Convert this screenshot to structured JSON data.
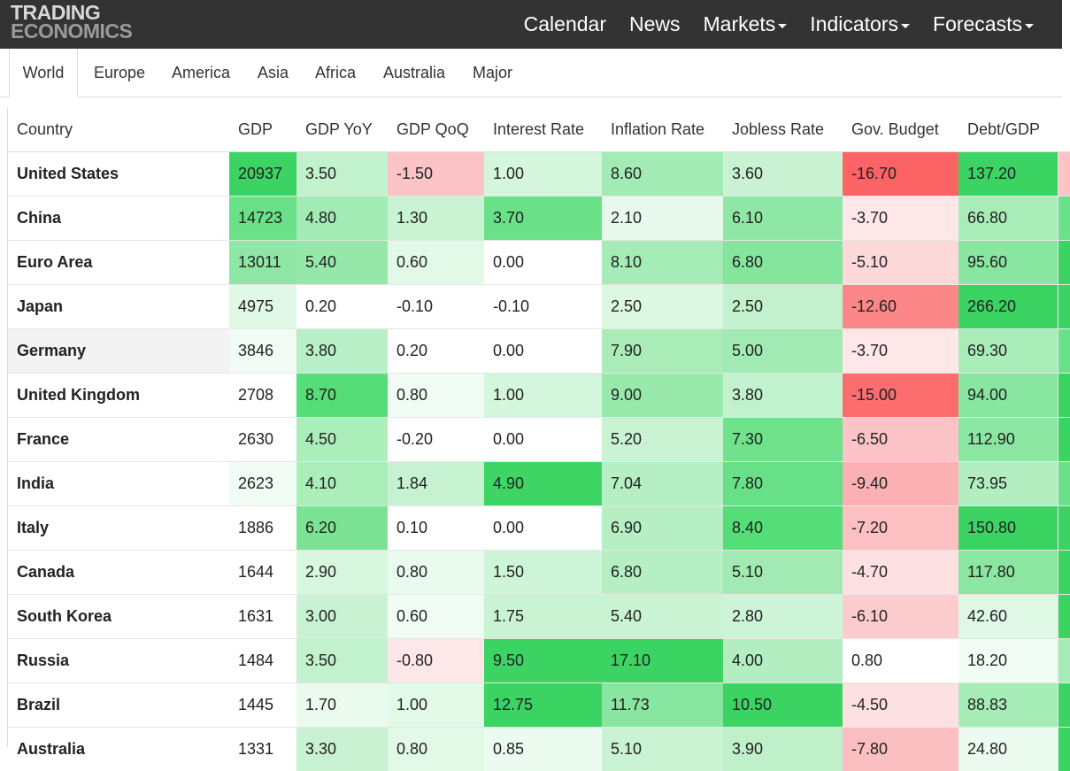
{
  "header": {
    "logo_line1": "TRADING",
    "logo_line2": "ECONOMICS",
    "nav": [
      {
        "label": "Calendar",
        "dropdown": false
      },
      {
        "label": "News",
        "dropdown": false
      },
      {
        "label": "Markets",
        "dropdown": true
      },
      {
        "label": "Indicators",
        "dropdown": true
      },
      {
        "label": "Forecasts",
        "dropdown": true
      }
    ]
  },
  "tabs": [
    {
      "label": "World",
      "active": true
    },
    {
      "label": "Europe",
      "active": false
    },
    {
      "label": "America",
      "active": false
    },
    {
      "label": "Asia",
      "active": false
    },
    {
      "label": "Africa",
      "active": false
    },
    {
      "label": "Australia",
      "active": false
    },
    {
      "label": "Major",
      "active": false
    }
  ],
  "table": {
    "columns": [
      "Country",
      "GDP",
      "GDP YoY",
      "GDP QoQ",
      "Interest Rate",
      "Inflation Rate",
      "Jobless Rate",
      "Gov. Budget",
      "Debt/GDP"
    ],
    "rows": [
      {
        "country": "United States",
        "values": [
          "20937",
          "3.50",
          "-1.50",
          "1.00",
          "8.60",
          "3.60",
          "-16.70",
          "137.20"
        ]
      },
      {
        "country": "China",
        "values": [
          "14723",
          "4.80",
          "1.30",
          "3.70",
          "2.10",
          "6.10",
          "-3.70",
          "66.80"
        ]
      },
      {
        "country": "Euro Area",
        "values": [
          "13011",
          "5.40",
          "0.60",
          "0.00",
          "8.10",
          "6.80",
          "-5.10",
          "95.60"
        ]
      },
      {
        "country": "Japan",
        "values": [
          "4975",
          "0.20",
          "-0.10",
          "-0.10",
          "2.50",
          "2.50",
          "-12.60",
          "266.20"
        ]
      },
      {
        "country": "Germany",
        "values": [
          "3846",
          "3.80",
          "0.20",
          "0.00",
          "7.90",
          "5.00",
          "-3.70",
          "69.30"
        ]
      },
      {
        "country": "United Kingdom",
        "values": [
          "2708",
          "8.70",
          "0.80",
          "1.00",
          "9.00",
          "3.80",
          "-15.00",
          "94.00"
        ]
      },
      {
        "country": "France",
        "values": [
          "2630",
          "4.50",
          "-0.20",
          "0.00",
          "5.20",
          "7.30",
          "-6.50",
          "112.90"
        ]
      },
      {
        "country": "India",
        "values": [
          "2623",
          "4.10",
          "1.84",
          "4.90",
          "7.04",
          "7.80",
          "-9.40",
          "73.95"
        ]
      },
      {
        "country": "Italy",
        "values": [
          "1886",
          "6.20",
          "0.10",
          "0.00",
          "6.90",
          "8.40",
          "-7.20",
          "150.80"
        ]
      },
      {
        "country": "Canada",
        "values": [
          "1644",
          "2.90",
          "0.80",
          "1.50",
          "6.80",
          "5.10",
          "-4.70",
          "117.80"
        ]
      },
      {
        "country": "South Korea",
        "values": [
          "1631",
          "3.00",
          "0.60",
          "1.75",
          "5.40",
          "2.80",
          "-6.10",
          "42.60"
        ]
      },
      {
        "country": "Russia",
        "values": [
          "1484",
          "3.50",
          "-0.80",
          "9.50",
          "17.10",
          "4.00",
          "0.80",
          "18.20"
        ]
      },
      {
        "country": "Brazil",
        "values": [
          "1445",
          "1.70",
          "1.00",
          "12.75",
          "11.73",
          "10.50",
          "-4.50",
          "88.83"
        ]
      },
      {
        "country": "Australia",
        "values": [
          "1331",
          "3.30",
          "0.80",
          "0.85",
          "5.10",
          "3.90",
          "-7.80",
          "24.80"
        ]
      }
    ],
    "cell_colors": [
      [
        "#3bd362",
        "#c2f1cd",
        "#fcc4c6",
        "#d4f6dc",
        "#a2ebb4",
        "#c8f2d2",
        "#fb6365",
        "#3bd362"
      ],
      [
        "#6ae188",
        "#a2ebb4",
        "#c9f3d3",
        "#6ae188",
        "#e6f9eb",
        "#8fe7a5",
        "#fde7e8",
        "#a8ecb8"
      ],
      [
        "#8fe7a5",
        "#95e8aa",
        "#e1f9e6",
        "#ffffff",
        "#a6ecb6",
        "#85e59d",
        "#fdd9da",
        "#89e6a0"
      ],
      [
        "#e0f9e6",
        "#ffffff",
        "#ffffff",
        "#ffffff",
        "#dcf7e2",
        "#c4f1cd",
        "#fc8789",
        "#3bd362"
      ],
      [
        "#f1fcf4",
        "#b9efc6",
        "#ffffff",
        "#ffffff",
        "#a9ecb8",
        "#a2eab3",
        "#fde7e8",
        "#a8ecb8"
      ],
      [
        "#ffffff",
        "#55dd77",
        "#f1fcf4",
        "#d4f6dc",
        "#99e9ad",
        "#c2f1cd",
        "#fb6d6f",
        "#89e6a0"
      ],
      [
        "#ffffff",
        "#aceeba",
        "#ffffff",
        "#ffffff",
        "#c9f3d3",
        "#70e28c",
        "#fcc4c6",
        "#8ae6a1"
      ],
      [
        "#f1fcf4",
        "#aceeba",
        "#c7f2d1",
        "#3ed564",
        "#b5efc3",
        "#68e087",
        "#fbb1b3",
        "#b3eec0"
      ],
      [
        "#ffffff",
        "#7ce395",
        "#ffffff",
        "#ffffff",
        "#b6efc4",
        "#55dd77",
        "#fcc0c2",
        "#3bd362"
      ],
      [
        "#ffffff",
        "#d8f7df",
        "#e9faee",
        "#cff5d8",
        "#b5efc3",
        "#a2eab3",
        "#fde1e2",
        "#8ae6a1"
      ],
      [
        "#ffffff",
        "#c8f2d2",
        "#f1fcf4",
        "#c9f3d3",
        "#c9f3d3",
        "#cef4d7",
        "#fccbcd",
        "#dff8e5"
      ],
      [
        "#ffffff",
        "#c2f1cd",
        "#fde7e8",
        "#3bd362",
        "#3bd362",
        "#b3eec0",
        "#ffffff",
        "#f1fcf4"
      ],
      [
        "#ffffff",
        "#eafaee",
        "#e1f9e6",
        "#3bd362",
        "#89e6a0",
        "#3bd362",
        "#fde1e2",
        "#a6ecb6"
      ],
      [
        "#ffffff",
        "#c8f2d2",
        "#e1f9e6",
        "#ecfbf0",
        "#c9f3d3",
        "#bff0ca",
        "#fcbfc1",
        "#ecfbf0"
      ]
    ]
  }
}
